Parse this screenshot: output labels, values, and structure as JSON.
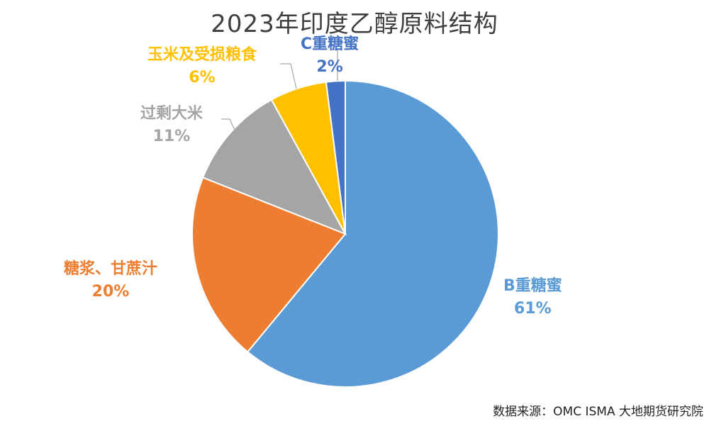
{
  "chart_data": {
    "type": "pie",
    "title": "2023年印度乙醇原料结构",
    "slices": [
      {
        "label": "B重糖蜜",
        "value": 61,
        "display": "61%",
        "color": "#5b9bd5"
      },
      {
        "label": "糖浆、甘蔗汁",
        "value": 20,
        "display": "20%",
        "color": "#ed7d31"
      },
      {
        "label": "过剩大米",
        "value": 11,
        "display": "11%",
        "color": "#a5a5a5"
      },
      {
        "label": "玉米及受损粮食",
        "value": 6,
        "display": "6%",
        "color": "#ffc000"
      },
      {
        "label": "C重糖蜜",
        "value": 2,
        "display": "2%",
        "color": "#4472c4"
      }
    ]
  },
  "source": "数据来源：OMC ISMA 大地期货研究院"
}
